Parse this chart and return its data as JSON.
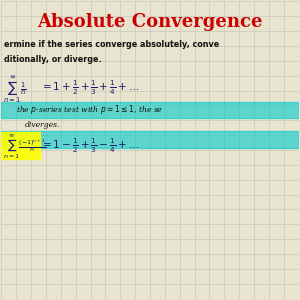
{
  "title": "Absolute Convergence",
  "title_color": "#cc0000",
  "title_fontsize": 13,
  "bg_color": "#e8e4d0",
  "grid_color": "#c8c8b8",
  "text_color_dark": "#1a1a6e",
  "text_color_black": "#111111",
  "line1_text": "ermine if the series converge absolutely, conve",
  "line2_text": "ditionally, or diverge.",
  "highlight_color": "#00cccc",
  "highlight2_color": "#ffff00",
  "fig_width": 3.0,
  "fig_height": 3.0
}
